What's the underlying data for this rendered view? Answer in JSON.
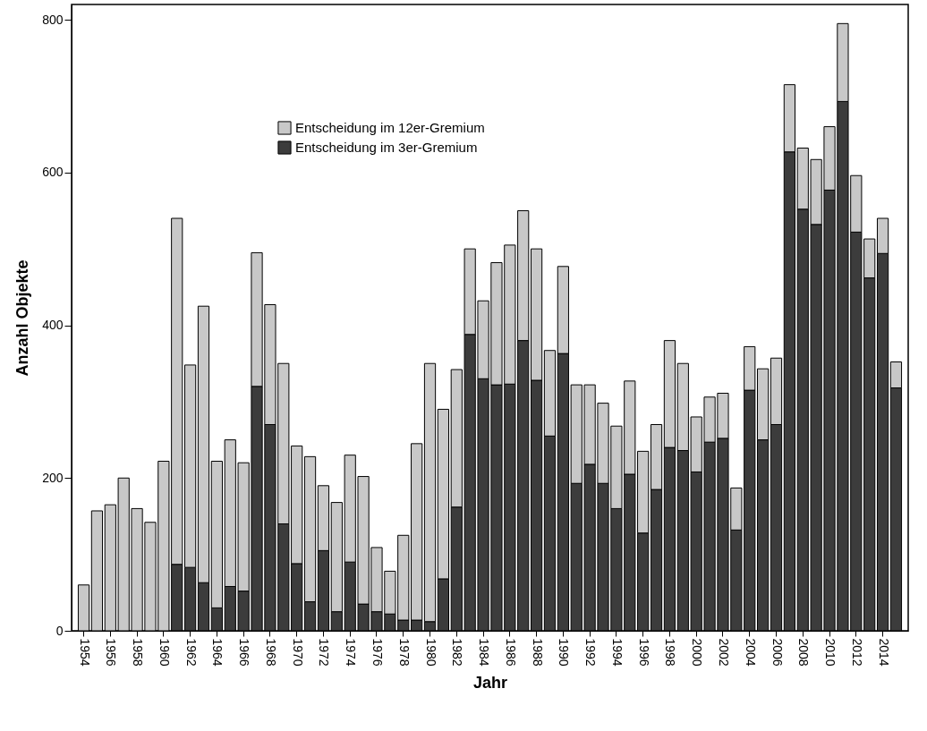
{
  "chart_data": {
    "type": "bar",
    "stacked": true,
    "xlabel": "Jahr",
    "ylabel": "Anzahl Objekte",
    "legend": "top left",
    "grid": false,
    "categories": [
      "1954",
      null,
      "1956",
      null,
      "1958",
      null,
      "1960",
      null,
      "1962",
      null,
      "1964",
      null,
      "1966",
      null,
      "1968",
      null,
      "1970",
      null,
      "1972",
      null,
      "1974",
      null,
      "1976",
      null,
      "1978",
      null,
      "1980",
      null,
      "1982",
      null,
      "1984",
      null,
      "1986",
      null,
      "1988",
      null,
      "1990",
      null,
      "1992",
      null,
      "1994",
      null,
      "1996",
      null,
      "1998",
      null,
      "2000",
      null,
      "2002",
      null,
      "2004",
      null,
      "2006",
      null,
      "2008",
      null,
      "2010",
      null,
      "2012",
      null,
      "2014",
      null
    ],
    "series": [
      {
        "name": "Entscheidung im 3er-Gremium",
        "color": "#3c3c3c",
        "values": [
          0,
          0,
          0,
          0,
          0,
          0,
          0,
          87,
          83,
          63,
          30,
          58,
          52,
          320,
          270,
          140,
          88,
          38,
          105,
          25,
          90,
          35,
          25,
          22,
          14,
          14,
          12,
          68,
          162,
          388,
          330,
          322,
          323,
          380,
          328,
          255,
          363,
          193,
          218,
          193,
          160,
          205,
          128,
          185,
          240,
          236,
          208,
          247,
          252,
          132,
          315,
          250,
          270,
          627,
          552,
          532,
          577,
          693,
          522,
          462,
          494,
          318
        ]
      },
      {
        "name": "Entscheidung im 12er-Gremium",
        "color": "#c8c8c8",
        "values": [
          60,
          157,
          165,
          200,
          160,
          142,
          222,
          453,
          265,
          362,
          192,
          192,
          168,
          175,
          157,
          210,
          154,
          190,
          85,
          143,
          140,
          167,
          84,
          56,
          111,
          231,
          338,
          222,
          180,
          112,
          102,
          160,
          182,
          170,
          172,
          112,
          114,
          129,
          104,
          105,
          108,
          122,
          107,
          85,
          140,
          114,
          72,
          59,
          59,
          55,
          57,
          93,
          87,
          88,
          80,
          85,
          83,
          102,
          74,
          51,
          46,
          34
        ]
      }
    ],
    "ylim": [
      0,
      820
    ],
    "yticks": [
      0,
      200,
      400,
      600,
      800
    ]
  }
}
